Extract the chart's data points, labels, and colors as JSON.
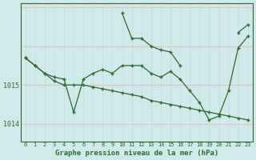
{
  "title": "Graphe pression niveau de la mer (hPa)",
  "x_labels": [
    "0",
    "1",
    "2",
    "3",
    "4",
    "5",
    "6",
    "7",
    "8",
    "9",
    "10",
    "11",
    "12",
    "13",
    "14",
    "15",
    "16",
    "17",
    "18",
    "19",
    "20",
    "21",
    "22",
    "23"
  ],
  "hours": [
    0,
    1,
    2,
    3,
    4,
    5,
    6,
    7,
    8,
    9,
    10,
    11,
    12,
    13,
    14,
    15,
    16,
    17,
    18,
    19,
    20,
    21,
    22,
    23
  ],
  "line_upper": [
    1015.7,
    1015.7,
    null,
    null,
    1015.5,
    null,
    1015.5,
    1015.55,
    1015.6,
    1015.5,
    1016.55,
    1015.85,
    1015.85,
    null,
    null,
    null,
    null,
    null,
    null,
    null,
    null,
    null,
    null,
    1016.55
  ],
  "line_peak": [
    null,
    null,
    null,
    null,
    null,
    null,
    null,
    null,
    null,
    null,
    1016.85,
    1016.2,
    1016.2,
    1016.0,
    1015.9,
    1015.85,
    1015.5,
    null,
    null,
    null,
    null,
    null,
    1016.35,
    1016.55
  ],
  "line_zigzag": [
    1015.7,
    1015.5,
    1015.3,
    1015.2,
    1015.15,
    1014.3,
    1015.15,
    1015.3,
    1015.4,
    1015.3,
    1015.5,
    1015.5,
    1015.5,
    1015.3,
    1015.2,
    1015.35,
    1015.15,
    1014.85,
    1014.55,
    1014.1,
    1014.2,
    1014.85,
    1015.95,
    1016.25
  ],
  "line_diagonal": [
    1015.7,
    1015.5,
    1015.3,
    1015.1,
    1015.0,
    1015.0,
    1015.0,
    1014.95,
    1014.9,
    1014.85,
    1014.8,
    1014.75,
    1014.7,
    1014.6,
    1014.55,
    1014.5,
    1014.45,
    1014.4,
    1014.35,
    1014.3,
    1014.25,
    1014.2,
    1014.15,
    1014.1
  ],
  "line_color": "#2d6a2d",
  "bg_color": "#ceeaea",
  "hgrid_color": "#f0b8b8",
  "vgrid_color": "#c8dada",
  "ylim": [
    1013.55,
    1017.1
  ],
  "xlim": [
    -0.5,
    23.5
  ]
}
